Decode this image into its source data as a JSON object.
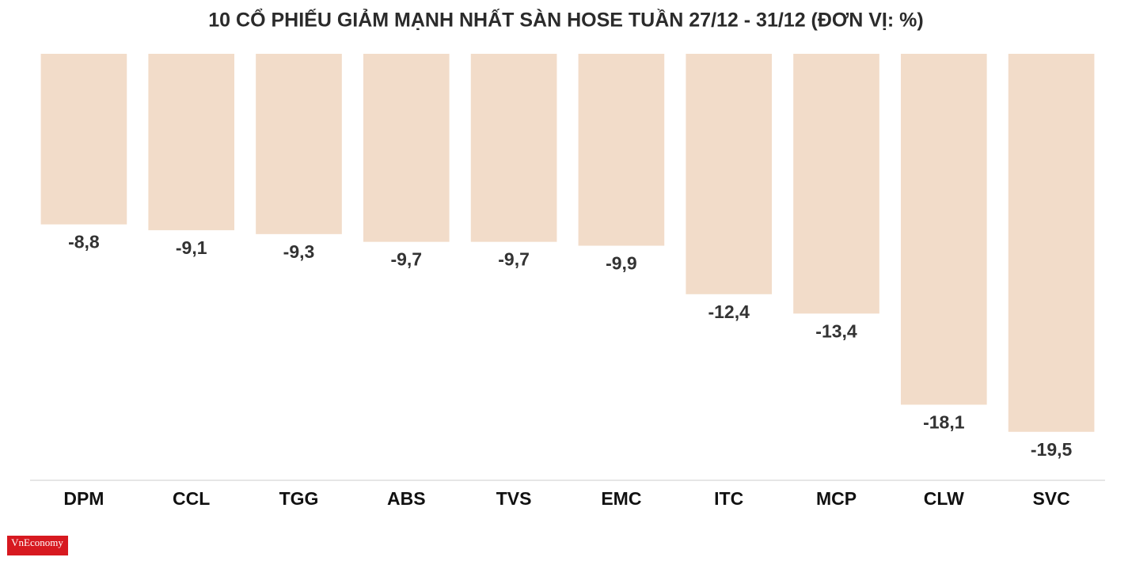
{
  "chart_data": {
    "type": "bar",
    "title": "10 CỔ PHIẾU GIẢM MẠNH NHẤT SÀN HOSE TUẦN 27/12 - 31/12 (ĐƠN VỊ: %)",
    "categories": [
      "DPM",
      "CCL",
      "TGG",
      "ABS",
      "TVS",
      "EMC",
      "ITC",
      "MCP",
      "CLW",
      "SVC"
    ],
    "values": [
      -8.8,
      -9.1,
      -9.3,
      -9.7,
      -9.7,
      -9.9,
      -12.4,
      -13.4,
      -18.1,
      -19.5
    ],
    "value_labels": [
      "-8,8",
      "-9,1",
      "-9,3",
      "-9,7",
      "-9,7",
      "-9,9",
      "-12,4",
      "-13,4",
      "-18,1",
      "-19,5"
    ],
    "color": "#f2dcc9",
    "ylim": [
      -22,
      0
    ]
  },
  "logo": "VnEconomy"
}
